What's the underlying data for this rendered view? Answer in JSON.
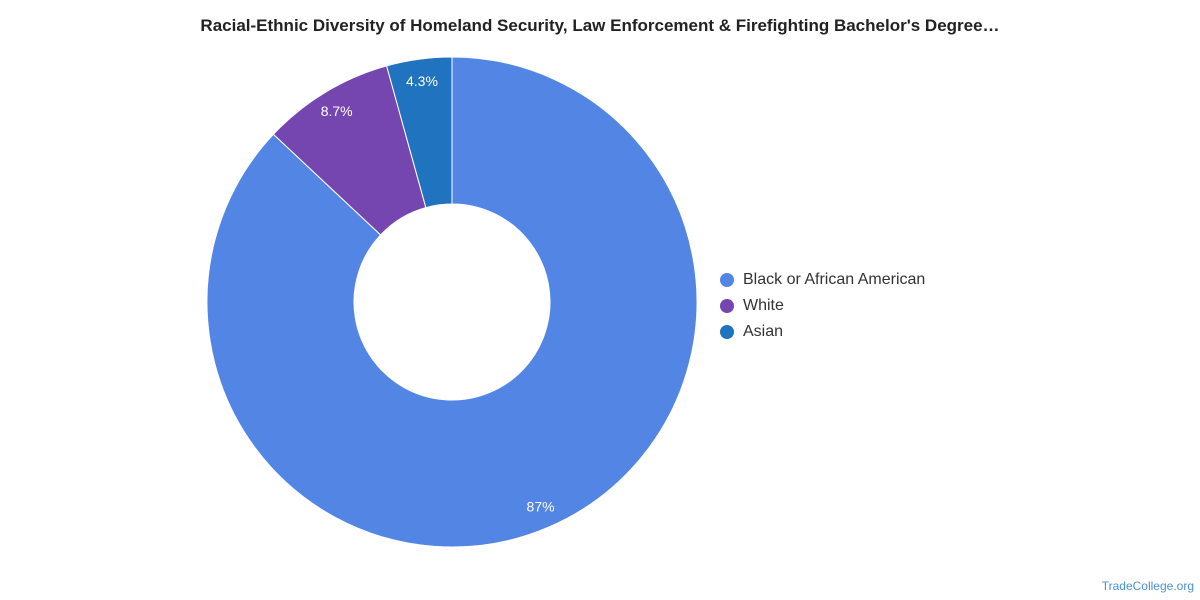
{
  "chart_data": {
    "type": "pie",
    "title": "Racial-Ethnic Diversity of Homeland Security, Law Enforcement & Firefighting Bachelor's Degree…",
    "slices": [
      {
        "name": "Black or African American",
        "value": 87,
        "label": "87%",
        "color": "#5386e4"
      },
      {
        "name": "White",
        "value": 8.7,
        "label": "8.7%",
        "color": "#7646b0"
      },
      {
        "name": "Asian",
        "value": 4.3,
        "label": "4.3%",
        "color": "#2073be"
      }
    ],
    "donut": true,
    "legend": "right"
  },
  "footer": {
    "source": "TradeCollege.org"
  }
}
